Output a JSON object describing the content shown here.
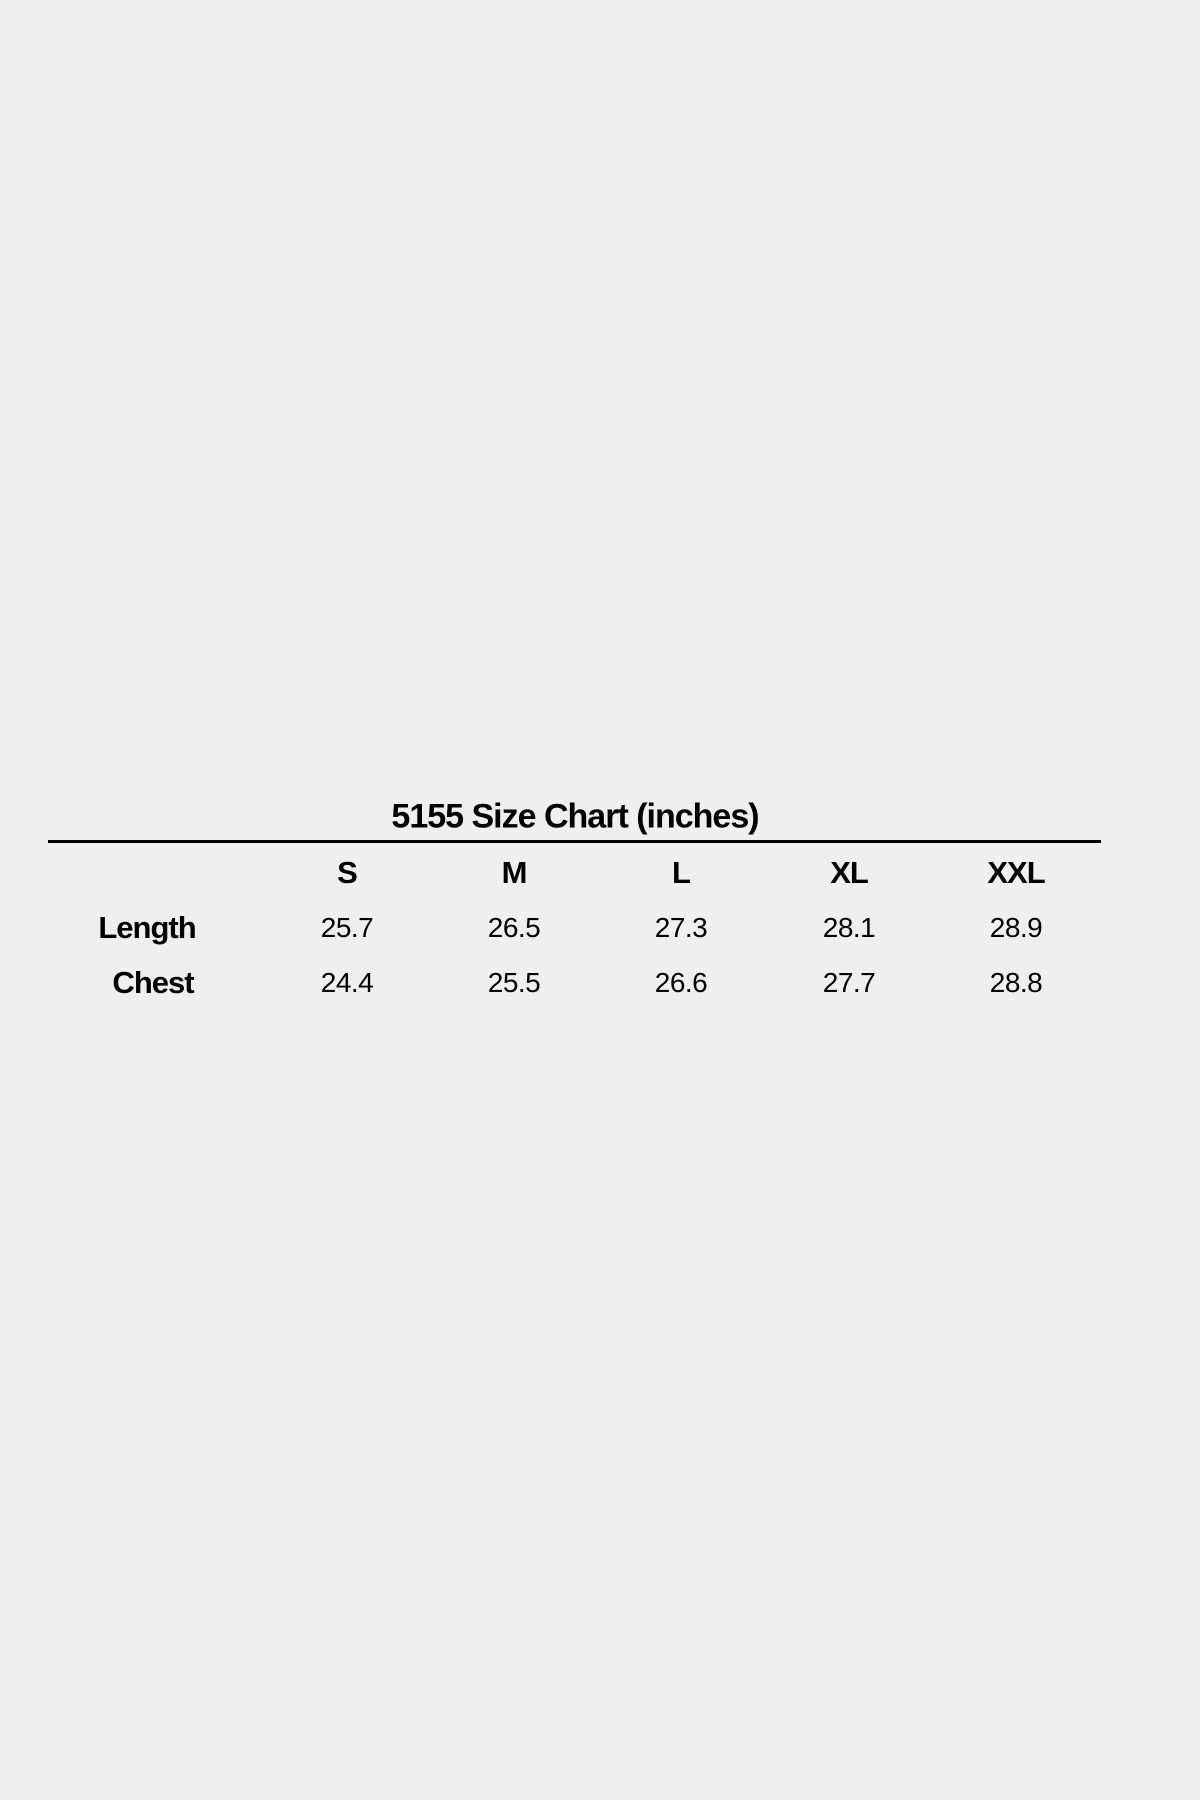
{
  "chart_data": {
    "type": "table",
    "title": "5155 Size Chart (inches)",
    "columns": [
      "S",
      "M",
      "L",
      "XL",
      "XXL"
    ],
    "rows": [
      {
        "label": "Length",
        "values": [
          "25.7",
          "26.5",
          "27.3",
          "28.1",
          "28.9"
        ]
      },
      {
        "label": "Chest",
        "values": [
          "24.4",
          "25.5",
          "26.6",
          "27.7",
          "28.8"
        ]
      }
    ]
  }
}
